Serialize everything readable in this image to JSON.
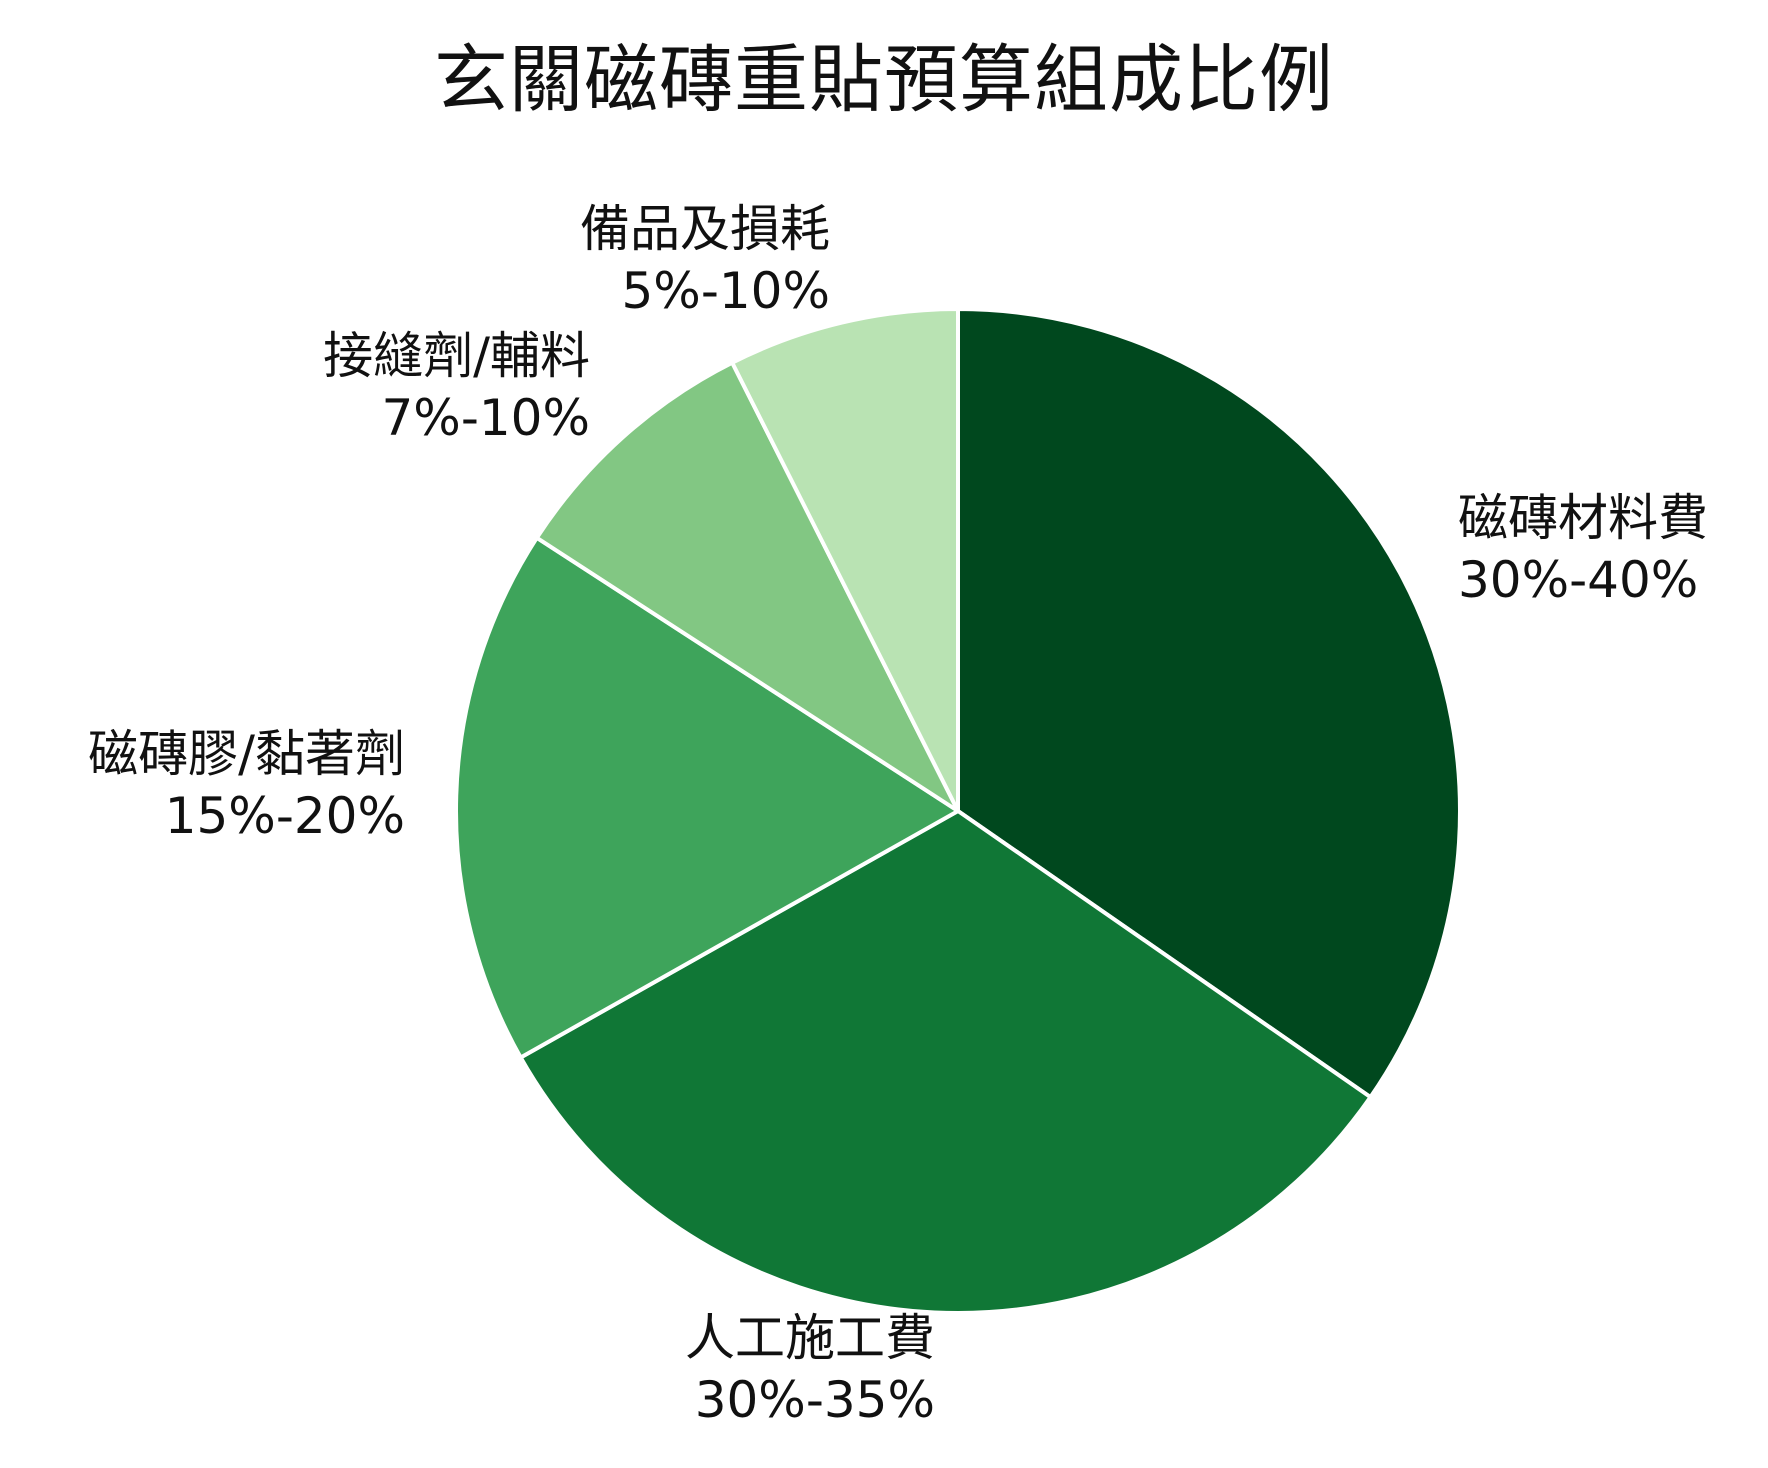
{
  "chart_data": {
    "type": "pie",
    "title": "玄關磁磚重貼預算組成比例",
    "start_angle": "12 o'clock, clockwise",
    "slices": [
      {
        "label": "磁磚材料費",
        "range": "30%-40%",
        "value": 35,
        "color": "#00481e"
      },
      {
        "label": "人工施工費",
        "range": "30%-35%",
        "value": 32.5,
        "color": "#107736"
      },
      {
        "label": "磁磚膠/黏著劑",
        "range": "15%-20%",
        "value": 17.5,
        "color": "#3ea45b"
      },
      {
        "label": "接縫劑/輔料",
        "range": "7%-10%",
        "value": 8.5,
        "color": "#82c783"
      },
      {
        "label": "備品及損耗",
        "range": "5%-10%",
        "value": 7.5,
        "color": "#b9e3b3"
      }
    ]
  }
}
